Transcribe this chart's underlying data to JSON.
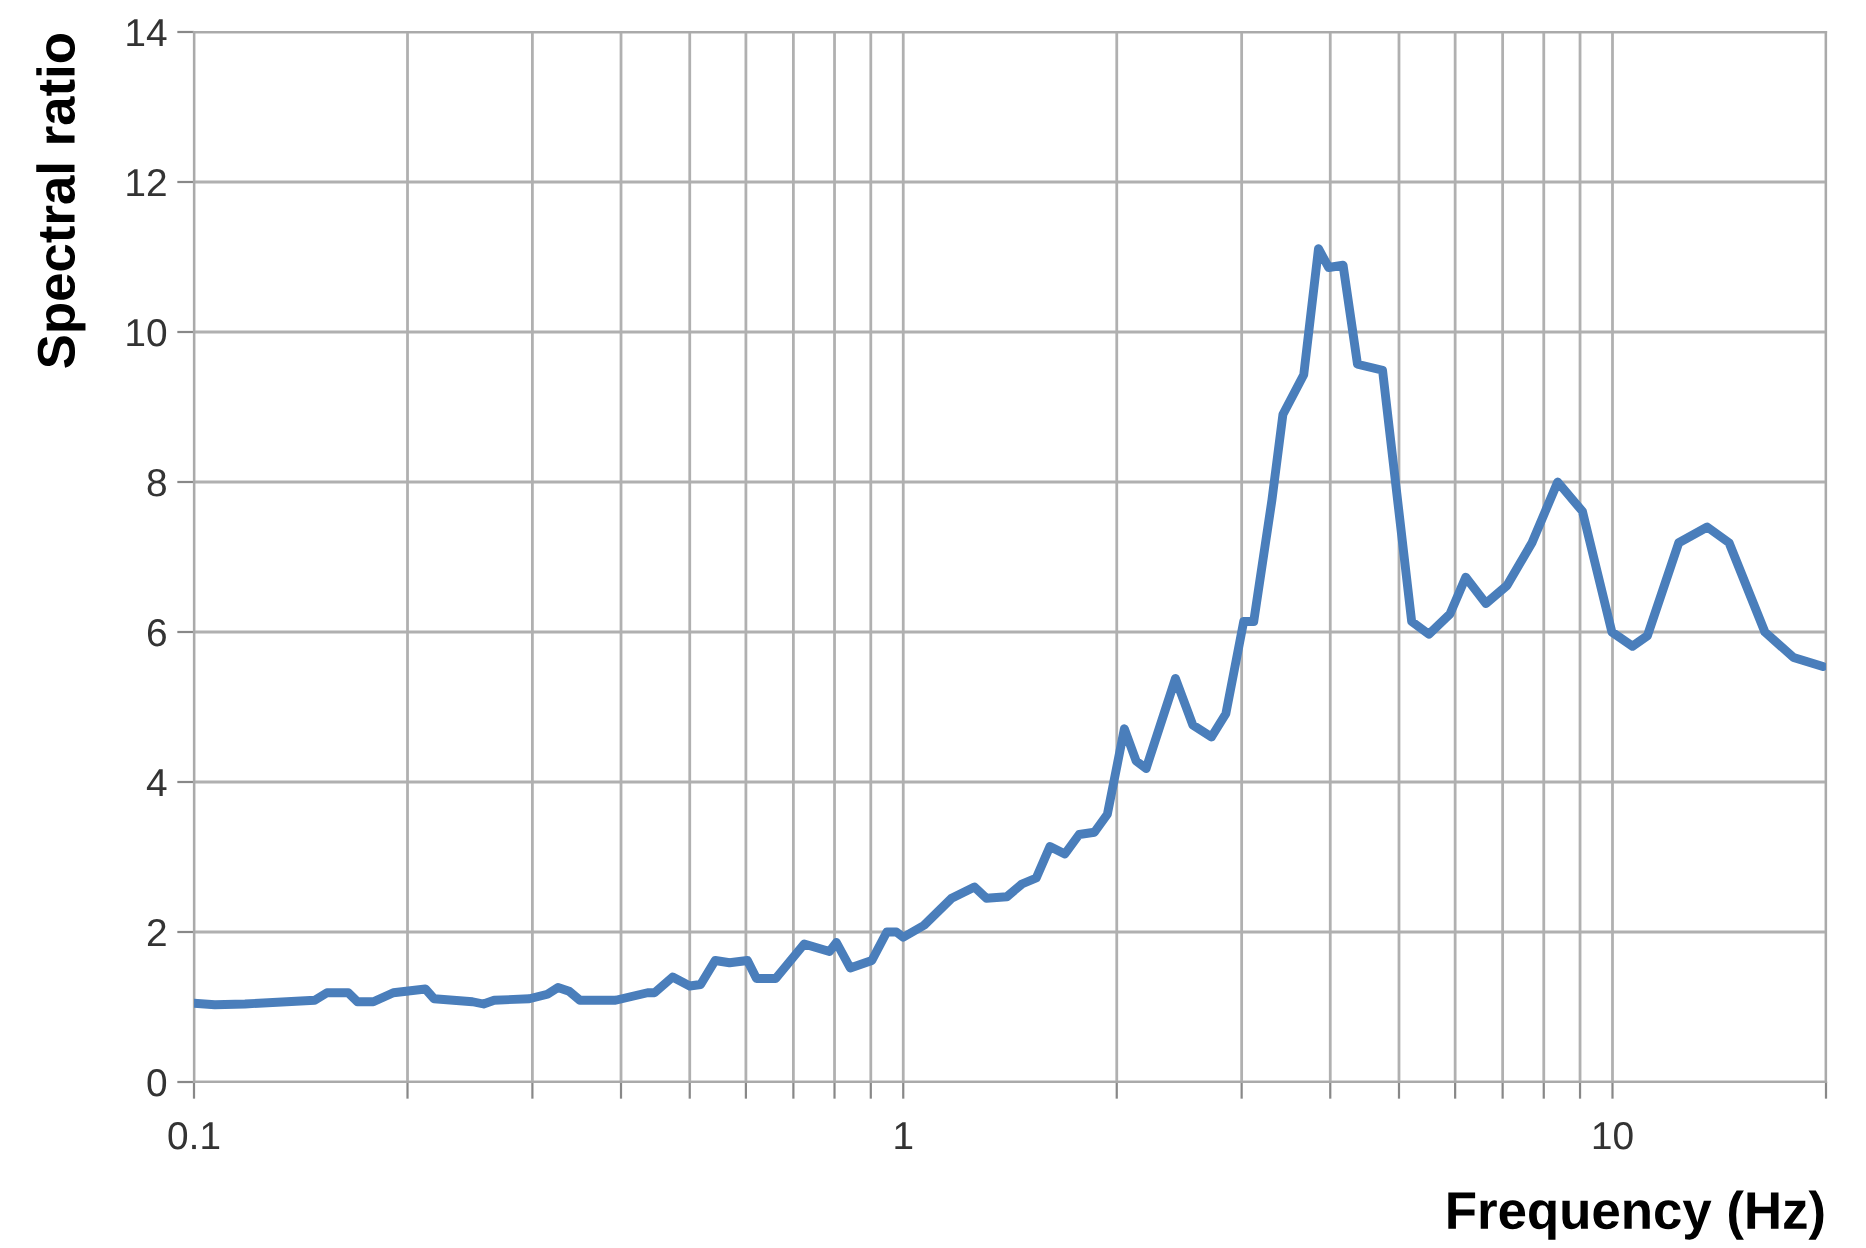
{
  "chart_data": {
    "type": "line",
    "xlabel": "Frequency (Hz)",
    "ylabel": "Spectral ratio",
    "log": "x",
    "grid": true,
    "marker": "none",
    "line_style": "solid",
    "xlim": [
      0.1,
      20
    ],
    "ylim": [
      0,
      14
    ],
    "xticks": [
      0.1,
      {
        "value": 0.2,
        "label": null
      },
      {
        "value": 0.3,
        "label": null
      },
      {
        "value": 0.4,
        "label": null
      },
      {
        "value": 0.5,
        "label": null
      },
      {
        "value": 0.6,
        "label": null
      },
      {
        "value": 0.7,
        "label": null
      },
      {
        "value": 0.8,
        "label": null
      },
      {
        "value": 0.9,
        "label": null
      },
      1,
      {
        "value": 2,
        "label": null
      },
      {
        "value": 3,
        "label": null
      },
      {
        "value": 4,
        "label": null
      },
      {
        "value": 5,
        "label": null
      },
      {
        "value": 6,
        "label": null
      },
      {
        "value": 7,
        "label": null
      },
      {
        "value": 8,
        "label": null
      },
      {
        "value": 9,
        "label": null
      },
      10,
      {
        "value": 20,
        "label": null
      }
    ],
    "yticks": [
      0,
      2,
      4,
      6,
      8,
      10,
      12,
      14
    ],
    "series": [
      {
        "color": "#4a7ebb",
        "x": [
          0.1,
          0.107,
          0.118,
          0.148,
          0.154,
          0.165,
          0.17,
          0.179,
          0.191,
          0.212,
          0.218,
          0.247,
          0.256,
          0.265,
          0.297,
          0.315,
          0.326,
          0.338,
          0.35,
          0.393,
          0.436,
          0.446,
          0.473,
          0.5,
          0.518,
          0.543,
          0.569,
          0.603,
          0.621,
          0.661,
          0.725,
          0.787,
          0.805,
          0.842,
          0.903,
          0.948,
          0.978,
          1.0,
          1.07,
          1.17,
          1.26,
          1.31,
          1.4,
          1.47,
          1.54,
          1.61,
          1.69,
          1.77,
          1.86,
          1.94,
          2.05,
          2.13,
          2.2,
          2.42,
          2.56,
          2.72,
          2.85,
          3.02,
          3.12,
          3.31,
          3.43,
          3.67,
          3.85,
          3.98,
          4.17,
          4.37,
          4.74,
          5.21,
          5.51,
          5.9,
          6.21,
          6.63,
          7.1,
          7.7,
          8.37,
          9.07,
          9.98,
          10.67,
          11.2,
          12.4,
          13.6,
          14.6,
          16.4,
          18.0,
          19.8
        ],
        "values": [
          1.05,
          1.03,
          1.04,
          1.09,
          1.19,
          1.19,
          1.07,
          1.07,
          1.19,
          1.24,
          1.11,
          1.07,
          1.04,
          1.09,
          1.11,
          1.17,
          1.26,
          1.21,
          1.09,
          1.09,
          1.19,
          1.19,
          1.4,
          1.28,
          1.3,
          1.62,
          1.59,
          1.62,
          1.38,
          1.38,
          1.84,
          1.74,
          1.86,
          1.52,
          1.62,
          2.0,
          2.0,
          1.93,
          2.09,
          2.45,
          2.6,
          2.45,
          2.47,
          2.64,
          2.72,
          3.14,
          3.04,
          3.3,
          3.33,
          3.57,
          4.71,
          4.28,
          4.18,
          5.38,
          4.76,
          4.6,
          4.91,
          6.14,
          6.14,
          7.76,
          8.9,
          9.43,
          11.11,
          10.86,
          10.89,
          9.57,
          9.49,
          6.14,
          5.97,
          6.24,
          6.73,
          6.38,
          6.62,
          7.19,
          8.0,
          7.61,
          6.0,
          5.81,
          5.95,
          7.19,
          7.4,
          7.19,
          6.0,
          5.66,
          5.54
        ]
      }
    ]
  }
}
